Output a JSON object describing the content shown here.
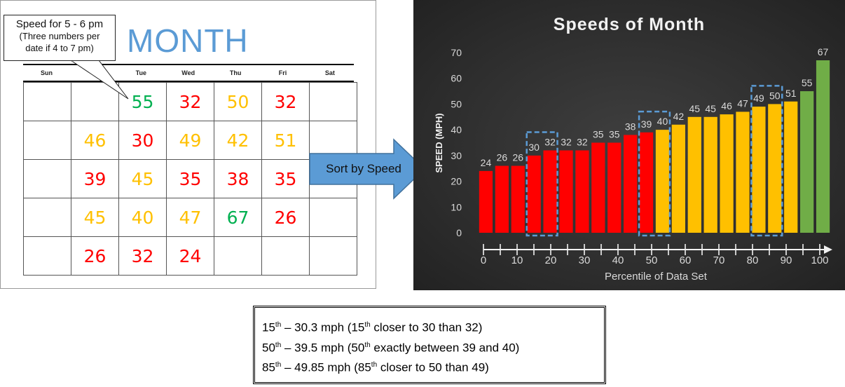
{
  "calendar": {
    "title": "MONTH",
    "callout": {
      "line1": "Speed for 5 - 6 pm",
      "line2": "(Three numbers per",
      "line3": "date if 4 to 7 pm)"
    },
    "days": [
      "Sun",
      "",
      "Tue",
      "Wed",
      "Thu",
      "Fri",
      "Sat"
    ],
    "rows": [
      [
        "",
        "",
        "55",
        "32",
        "50",
        "32",
        ""
      ],
      [
        "",
        "46",
        "30",
        "49",
        "42",
        "51",
        ""
      ],
      [
        "",
        "39",
        "45",
        "35",
        "38",
        "35",
        ""
      ],
      [
        "",
        "45",
        "40",
        "47",
        "67",
        "26",
        ""
      ],
      [
        "",
        "26",
        "32",
        "24",
        "",
        "",
        ""
      ]
    ],
    "row_colors": [
      [
        "",
        "",
        "green",
        "red",
        "amber",
        "red",
        ""
      ],
      [
        "",
        "amber",
        "red",
        "amber",
        "amber",
        "amber",
        ""
      ],
      [
        "",
        "red",
        "amber",
        "red",
        "red",
        "red",
        ""
      ],
      [
        "",
        "amber",
        "amber",
        "amber",
        "green",
        "red",
        ""
      ],
      [
        "",
        "red",
        "red",
        "red",
        "",
        "",
        ""
      ]
    ]
  },
  "arrow": {
    "label": "Sort by Speed"
  },
  "colors": {
    "red": "#ff0000",
    "amber": "#ffc000",
    "green": "#70ad47",
    "highlight": "#5b9bd5"
  },
  "chart_data": {
    "type": "bar",
    "title": "Speeds of Month",
    "xlabel": "Percentile of Data Set",
    "ylabel": "SPEED (MPH)",
    "ylim": [
      0,
      70
    ],
    "yticks": [
      0,
      10,
      20,
      30,
      40,
      50,
      60,
      70
    ],
    "xlim": [
      0,
      100
    ],
    "xticks": [
      0,
      10,
      20,
      30,
      40,
      50,
      60,
      70,
      80,
      90,
      100
    ],
    "values": [
      24,
      26,
      26,
      30,
      32,
      32,
      32,
      35,
      35,
      38,
      39,
      40,
      42,
      45,
      45,
      46,
      47,
      49,
      50,
      51,
      55,
      67
    ],
    "bar_colors": [
      "red",
      "red",
      "red",
      "red",
      "red",
      "red",
      "red",
      "red",
      "red",
      "red",
      "red",
      "amber",
      "amber",
      "amber",
      "amber",
      "amber",
      "amber",
      "amber",
      "amber",
      "amber",
      "green",
      "green"
    ],
    "highlight_groups": [
      [
        3,
        4
      ],
      [
        10,
        11
      ],
      [
        17,
        18
      ]
    ],
    "grid": false
  },
  "notes": [
    {
      "pct": "15",
      "sup": "th",
      "mid": " – 30.3 mph (15",
      "sup2": "th",
      "tail": " closer to 30 than 32)"
    },
    {
      "pct": "50",
      "sup": "th",
      "mid": " – 39.5 mph (50",
      "sup2": "th",
      "tail": " exactly between 39 and 40)"
    },
    {
      "pct": "85",
      "sup": "th",
      "mid": " – 49.85 mph (85",
      "sup2": "th",
      "tail": " closer to 50 than 49)"
    }
  ]
}
